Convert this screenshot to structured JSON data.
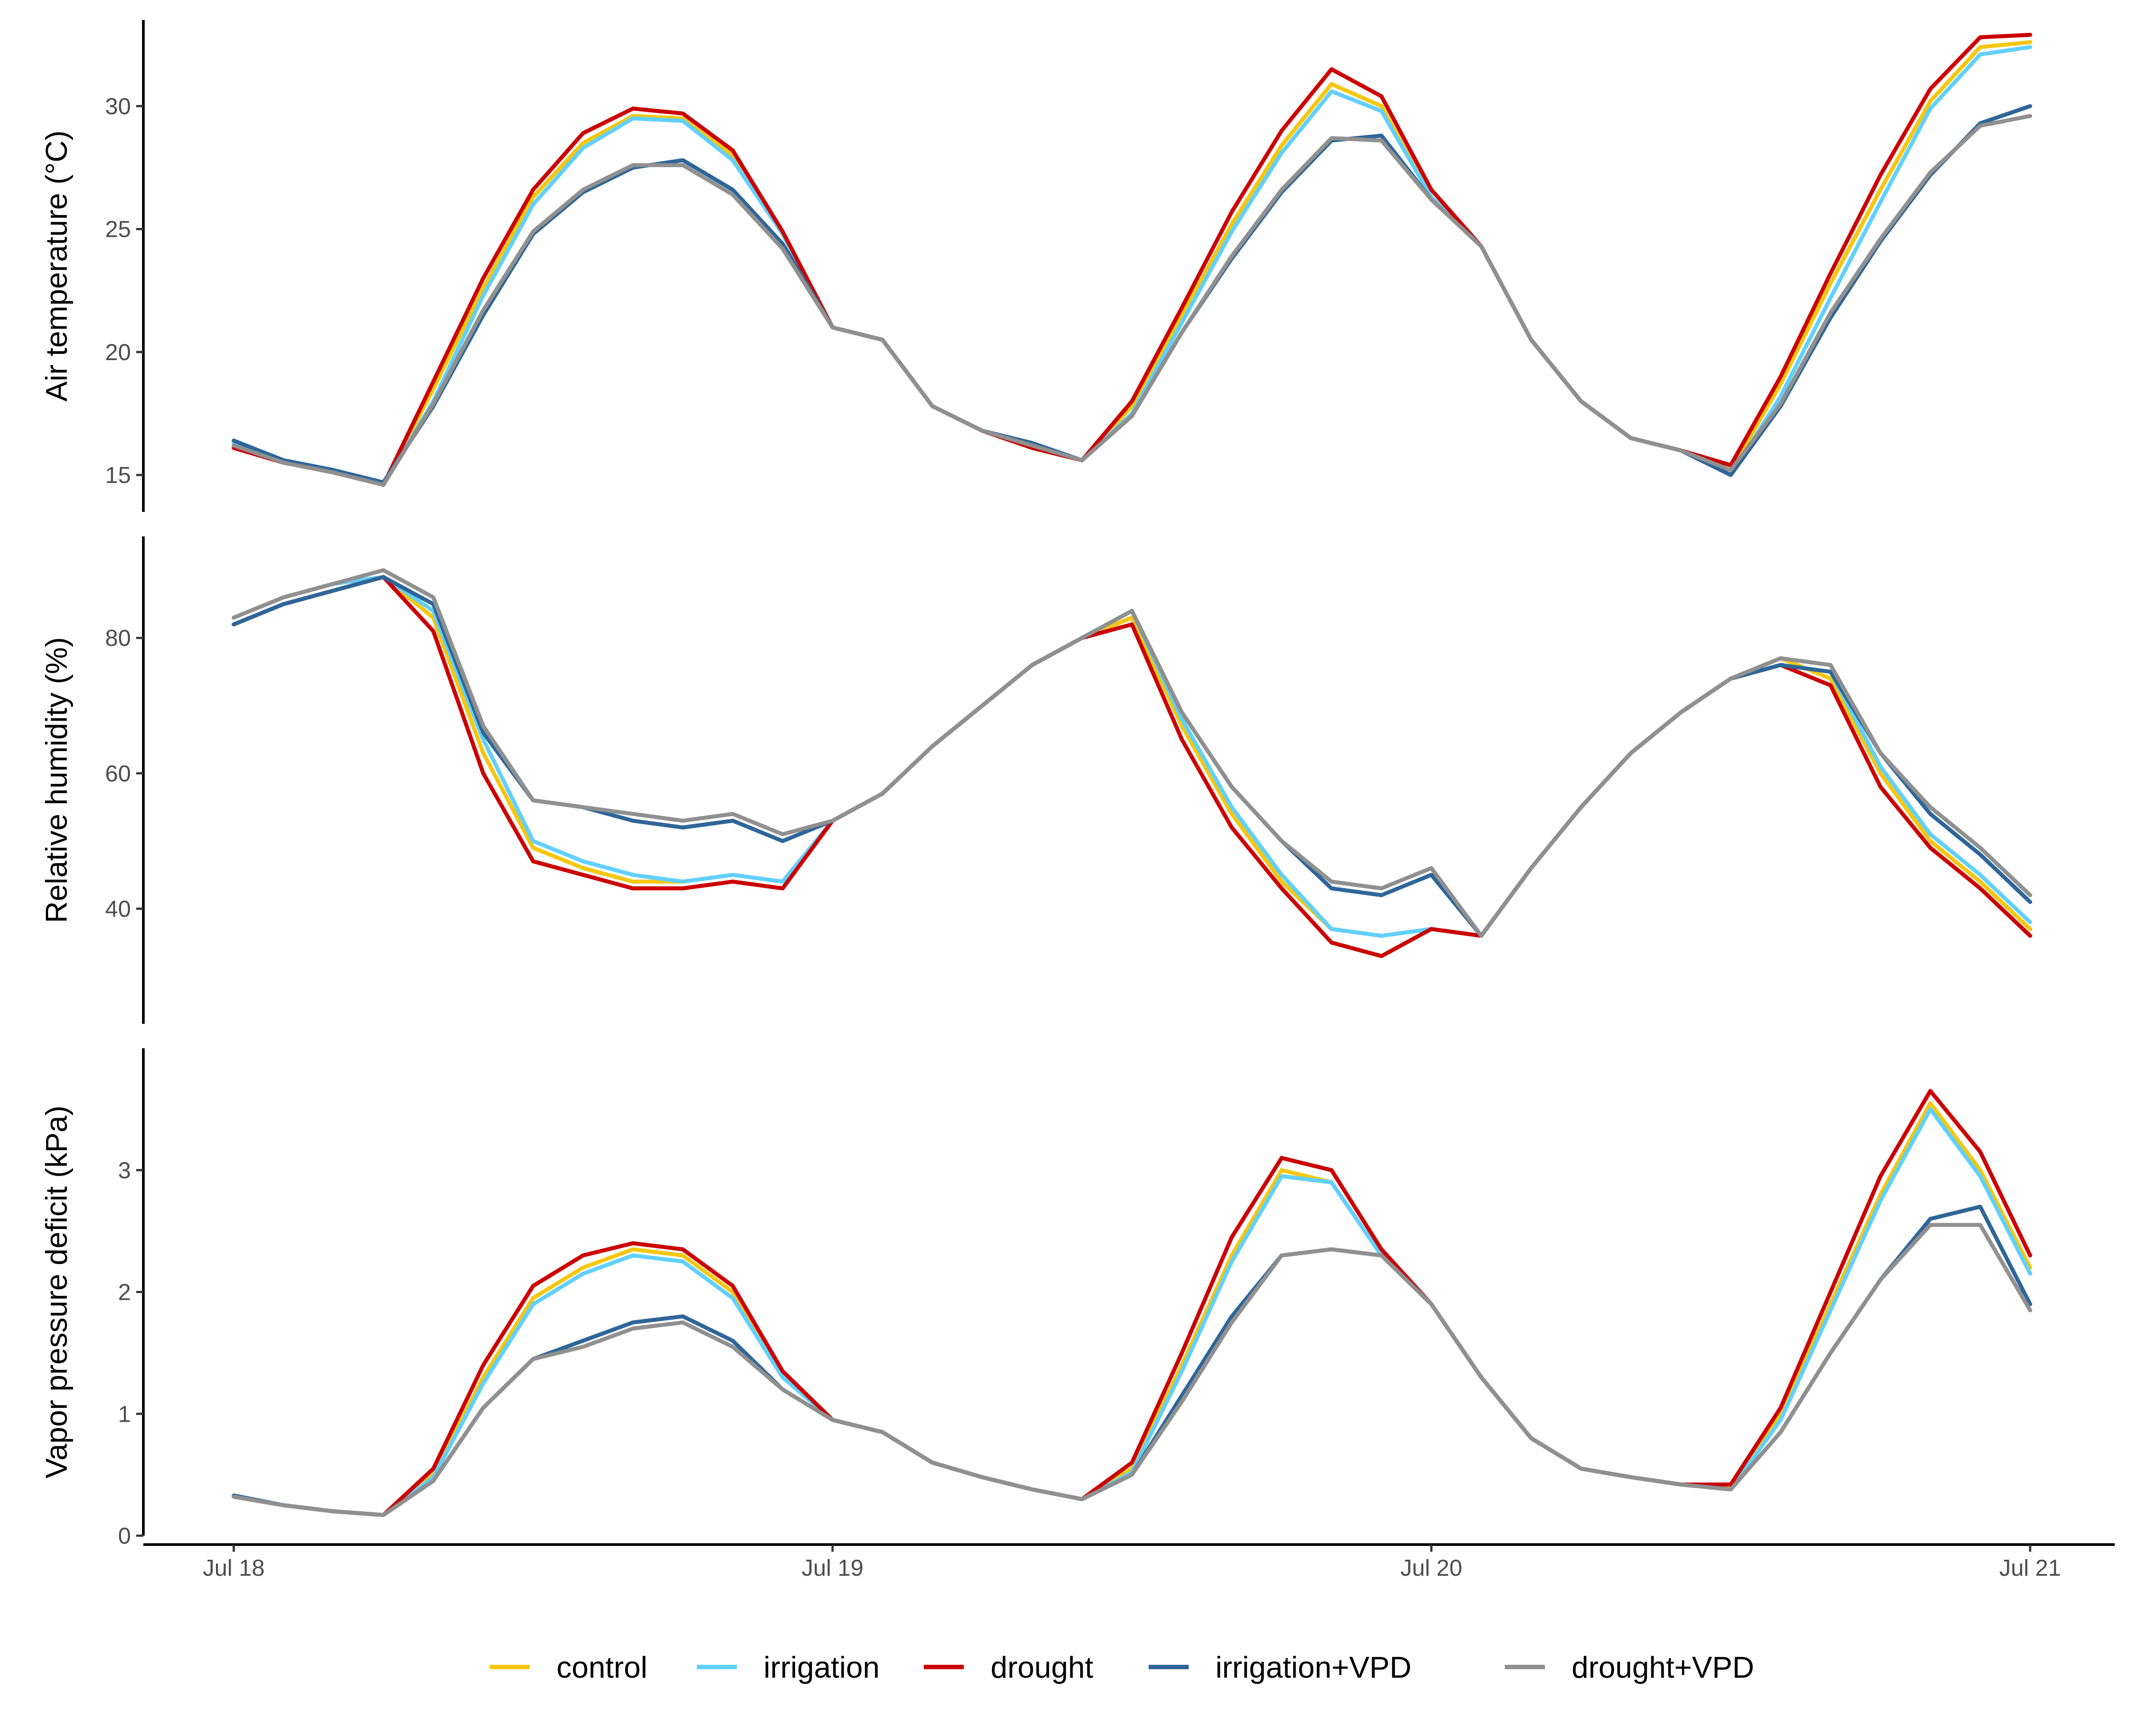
{
  "colors": {
    "control": "#F5C710",
    "irrigation": "#61D0FF",
    "drought": "#CC0000",
    "irrigation_vpd": "#2E6699",
    "drought_vpd": "#909090"
  },
  "legend": [
    "control",
    "irrigation",
    "drought",
    "irrigation+VPD",
    "drought+VPD"
  ],
  "chart_data": {
    "type": "line",
    "x_axis": {
      "scale": "datetime",
      "ticks": [
        "Jul 18",
        "Jul 19",
        "Jul 20",
        "Jul 21"
      ],
      "range": [
        "Jul 18 00:00",
        "Jul 21 00:00"
      ]
    },
    "x_hours": [
      0,
      2,
      4,
      6,
      8,
      10,
      12,
      14,
      16,
      18,
      20,
      22,
      24,
      26,
      28,
      30,
      32,
      34,
      36,
      38,
      40,
      42,
      44,
      46,
      48,
      50,
      52,
      54,
      56,
      58,
      60,
      62,
      64,
      66,
      68,
      70,
      72
    ],
    "panels": [
      {
        "ylabel": "Air temperature (°C)",
        "ylim": [
          13.5,
          33.5
        ],
        "yticks": [
          15,
          20,
          25,
          30
        ],
        "series": [
          {
            "name": "control",
            "key": "control",
            "values": [
              16.3,
              15.6,
              15.2,
              14.6,
              18.5,
              22.6,
              26.3,
              28.5,
              29.6,
              29.5,
              28.0,
              24.8,
              21.0,
              20.5,
              17.8,
              16.8,
              16.2,
              15.6,
              17.8,
              21.5,
              25.2,
              28.4,
              30.9,
              30.0,
              26.3,
              24.3,
              20.5,
              18.0,
              16.5,
              16.0,
              15.2,
              18.7,
              22.8,
              26.6,
              30.2,
              32.4,
              32.6
            ]
          },
          {
            "name": "irrigation",
            "key": "irrigation",
            "values": [
              16.3,
              15.6,
              15.2,
              14.6,
              18.0,
              22.3,
              26.0,
              28.3,
              29.5,
              29.4,
              27.8,
              24.8,
              21.0,
              20.5,
              17.8,
              16.8,
              16.2,
              15.6,
              17.5,
              21.2,
              24.9,
              28.1,
              30.6,
              29.8,
              26.3,
              24.3,
              20.5,
              18.0,
              16.5,
              16.0,
              15.0,
              18.2,
              22.2,
              26.1,
              29.9,
              32.1,
              32.4
            ]
          },
          {
            "name": "drought",
            "key": "drought",
            "values": [
              16.1,
              15.5,
              15.1,
              14.6,
              18.8,
              23.0,
              26.6,
              28.9,
              29.9,
              29.7,
              28.2,
              24.9,
              21.0,
              20.5,
              17.8,
              16.8,
              16.1,
              15.6,
              18.0,
              21.8,
              25.7,
              29.0,
              31.5,
              30.4,
              26.6,
              24.3,
              20.5,
              18.0,
              16.5,
              16.0,
              15.4,
              19.0,
              23.2,
              27.2,
              30.7,
              32.8,
              32.9
            ]
          },
          {
            "name": "irrigation+VPD",
            "key": "irrigation_vpd",
            "values": [
              16.4,
              15.6,
              15.2,
              14.7,
              17.8,
              21.5,
              24.8,
              26.5,
              27.5,
              27.8,
              26.6,
              24.4,
              21.0,
              20.5,
              17.8,
              16.8,
              16.3,
              15.6,
              17.4,
              20.8,
              23.8,
              26.5,
              28.6,
              28.8,
              26.2,
              24.3,
              20.5,
              18.0,
              16.5,
              16.0,
              15.0,
              17.8,
              21.4,
              24.5,
              27.2,
              29.3,
              30.0
            ]
          },
          {
            "name": "drought+VPD",
            "key": "drought_vpd",
            "values": [
              16.2,
              15.5,
              15.1,
              14.6,
              17.9,
              21.7,
              24.9,
              26.6,
              27.6,
              27.6,
              26.4,
              24.2,
              21.0,
              20.5,
              17.8,
              16.8,
              16.2,
              15.6,
              17.4,
              20.8,
              23.9,
              26.6,
              28.7,
              28.6,
              26.2,
              24.3,
              20.5,
              18.0,
              16.5,
              16.0,
              15.2,
              17.9,
              21.6,
              24.6,
              27.3,
              29.2,
              29.6
            ]
          }
        ]
      },
      {
        "ylabel": "Relative humidity (%)",
        "ylim": [
          23,
          95
        ],
        "yticks": [
          40,
          60,
          80
        ],
        "series": [
          {
            "name": "control",
            "key": "control",
            "values": [
              83,
              86,
              88,
              89,
              83,
              63,
              49,
              46,
              44,
              44,
              45,
              44,
              53,
              57,
              64,
              70,
              76,
              80,
              83,
              67,
              54,
              44,
              37,
              36,
              37,
              36,
              46,
              55,
              63,
              69,
              74,
              77,
              74,
              60,
              50,
              44,
              37
            ]
          },
          {
            "name": "irrigation",
            "key": "irrigation",
            "values": [
              83,
              86,
              88,
              89,
              84,
              65,
              50,
              47,
              45,
              44,
              45,
              44,
              53,
              57,
              64,
              70,
              76,
              80,
              84,
              68,
              55,
              45,
              37,
              36,
              37,
              36,
              46,
              55,
              63,
              69,
              74,
              76,
              75,
              61,
              51,
              45,
              38
            ]
          },
          {
            "name": "drought",
            "key": "drought",
            "values": [
              82,
              85,
              87,
              89,
              81,
              60,
              47,
              45,
              43,
              43,
              44,
              43,
              53,
              57,
              64,
              70,
              76,
              80,
              82,
              65,
              52,
              43,
              35,
              33,
              37,
              36,
              46,
              55,
              63,
              69,
              74,
              76,
              73,
              58,
              49,
              43,
              36
            ]
          },
          {
            "name": "irrigation+VPD",
            "key": "irrigation_vpd",
            "values": [
              82,
              85,
              87,
              89,
              85,
              66,
              56,
              55,
              53,
              52,
              53,
              50,
              53,
              57,
              64,
              70,
              76,
              80,
              84,
              69,
              58,
              50,
              43,
              42,
              45,
              36,
              46,
              55,
              63,
              69,
              74,
              76,
              75,
              63,
              54,
              48,
              41
            ]
          },
          {
            "name": "drought+VPD",
            "key": "drought_vpd",
            "values": [
              83,
              86,
              88,
              90,
              86,
              67,
              56,
              55,
              54,
              53,
              54,
              51,
              53,
              57,
              64,
              70,
              76,
              80,
              84,
              69,
              58,
              50,
              44,
              43,
              46,
              36,
              46,
              55,
              63,
              69,
              74,
              77,
              76,
              63,
              55,
              49,
              42
            ]
          }
        ]
      },
      {
        "ylabel": "Vapor pressure deficit (kPa)",
        "ylim": [
          0,
          4
        ],
        "yticks": [
          0,
          1,
          2,
          3
        ],
        "series": [
          {
            "name": "control",
            "key": "control",
            "values": [
              0.32,
              0.25,
              0.2,
              0.17,
              0.5,
              1.3,
              1.95,
              2.2,
              2.35,
              2.3,
              2.0,
              1.3,
              0.95,
              0.85,
              0.6,
              0.48,
              0.38,
              0.3,
              0.55,
              1.4,
              2.3,
              3.0,
              2.9,
              2.3,
              1.9,
              1.3,
              0.8,
              0.55,
              0.48,
              0.42,
              0.4,
              1.0,
              1.9,
              2.8,
              3.55,
              3.0,
              2.2
            ]
          },
          {
            "name": "irrigation",
            "key": "irrigation",
            "values": [
              0.32,
              0.25,
              0.2,
              0.17,
              0.48,
              1.25,
              1.9,
              2.15,
              2.3,
              2.25,
              1.95,
              1.3,
              0.95,
              0.85,
              0.6,
              0.48,
              0.38,
              0.3,
              0.52,
              1.35,
              2.25,
              2.95,
              2.9,
              2.3,
              1.9,
              1.3,
              0.8,
              0.55,
              0.48,
              0.42,
              0.38,
              0.95,
              1.85,
              2.75,
              3.5,
              2.95,
              2.15
            ]
          },
          {
            "name": "drought",
            "key": "drought",
            "values": [
              0.32,
              0.25,
              0.2,
              0.17,
              0.55,
              1.4,
              2.05,
              2.3,
              2.4,
              2.35,
              2.05,
              1.35,
              0.95,
              0.85,
              0.6,
              0.48,
              0.38,
              0.3,
              0.6,
              1.5,
              2.45,
              3.1,
              3.0,
              2.35,
              1.9,
              1.3,
              0.8,
              0.55,
              0.48,
              0.42,
              0.42,
              1.05,
              2.0,
              2.95,
              3.65,
              3.15,
              2.3
            ]
          },
          {
            "name": "irrigation+VPD",
            "key": "irrigation_vpd",
            "values": [
              0.33,
              0.25,
              0.2,
              0.17,
              0.45,
              1.05,
              1.45,
              1.6,
              1.75,
              1.8,
              1.6,
              1.2,
              0.95,
              0.85,
              0.6,
              0.48,
              0.38,
              0.3,
              0.5,
              1.15,
              1.8,
              2.3,
              2.35,
              2.3,
              1.9,
              1.3,
              0.8,
              0.55,
              0.48,
              0.42,
              0.38,
              0.85,
              1.5,
              2.1,
              2.6,
              2.7,
              1.9
            ]
          },
          {
            "name": "drought+VPD",
            "key": "drought_vpd",
            "values": [
              0.32,
              0.25,
              0.2,
              0.17,
              0.45,
              1.05,
              1.45,
              1.55,
              1.7,
              1.75,
              1.55,
              1.2,
              0.95,
              0.85,
              0.6,
              0.48,
              0.38,
              0.3,
              0.5,
              1.1,
              1.75,
              2.3,
              2.35,
              2.3,
              1.9,
              1.3,
              0.8,
              0.55,
              0.48,
              0.42,
              0.38,
              0.85,
              1.5,
              2.1,
              2.55,
              2.55,
              1.85
            ]
          }
        ]
      }
    ]
  }
}
